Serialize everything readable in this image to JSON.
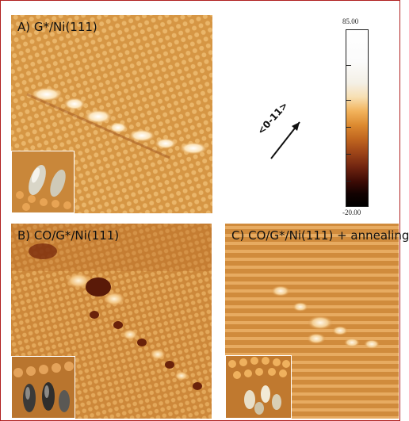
{
  "figure": {
    "panels": [
      {
        "id": "a",
        "label": "A) G*/Ni(111)"
      },
      {
        "id": "b",
        "label": "B) CO/G*/Ni(111)"
      },
      {
        "id": "c",
        "label": "C) CO/G*/Ni(111) + annealing"
      }
    ],
    "colorbar": {
      "max_label": "85.00",
      "min_label": "-20.00"
    },
    "direction_label": "<0-11>",
    "colors": {
      "frame": "#b02020",
      "surface": "#d79a45",
      "highlight": "#fff6e6",
      "shadow": "#5a1a08"
    }
  }
}
